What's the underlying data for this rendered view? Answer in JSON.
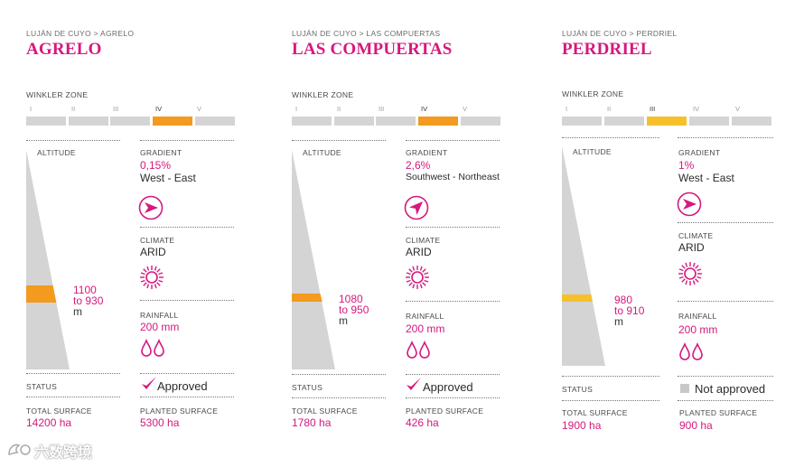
{
  "winkler_label": "WINKLER ZONE",
  "altitude_label": "ALTITUDE",
  "gradient_label": "GRADIENT",
  "climate_label": "CLIMATE",
  "rainfall_label": "RAINFALL",
  "status_label": "STATUS",
  "total_surface_label": "TOTAL SURFACE",
  "planted_surface_label": "PLANTED SURFACE",
  "zones": [
    "I",
    "II",
    "III",
    "IV",
    "V"
  ],
  "colors": {
    "accent": "#d6187e",
    "orange": "#f39a1f",
    "yellow": "#f5c02c",
    "grey": "#d4d4d4"
  },
  "panels": [
    {
      "breadcrumb": "LUJÁN DE CUYO > AGRELO",
      "title": "AGRELO",
      "active_zone": 4,
      "altitude": {
        "line1": "1100",
        "line2": "to 930",
        "unit": "m"
      },
      "gradient": {
        "value": "0,15%",
        "direction": "West -  East",
        "icon": "arrow-east-icon"
      },
      "climate": "ARID",
      "rainfall": "200 mm",
      "status": {
        "text": "Approved",
        "icon": "check-icon"
      },
      "total_surface": "14200 ha",
      "planted_surface": "5300 ha"
    },
    {
      "breadcrumb": "LUJÁN DE CUYO > LAS COMPUERTAS",
      "title": "LAS COMPUERTAS",
      "active_zone": 4,
      "altitude": {
        "line1": "1080",
        "line2": "to 950",
        "unit": "m"
      },
      "gradient": {
        "value": "2,6%",
        "direction": "Southwest  - Northeast",
        "icon": "arrow-northeast-icon"
      },
      "climate": "ARID",
      "rainfall": "200 mm",
      "status": {
        "text": "Approved",
        "icon": "check-icon"
      },
      "total_surface": "1780 ha",
      "planted_surface": "426 ha"
    },
    {
      "breadcrumb": "LUJÁN DE CUYO > PERDRIEL",
      "title": "PERDRIEL",
      "active_zone": 3,
      "altitude": {
        "line1": "980",
        "line2": "to 910",
        "unit": "m"
      },
      "gradient": {
        "value": "1%",
        "direction": "West - East",
        "icon": "arrow-east-icon"
      },
      "climate": "ARID",
      "rainfall": "200 mm",
      "status": {
        "text": "Not approved",
        "icon": "grey-square-icon"
      },
      "total_surface": "1900 ha",
      "planted_surface": "900 ha"
    }
  ],
  "watermark": "六数跨境"
}
